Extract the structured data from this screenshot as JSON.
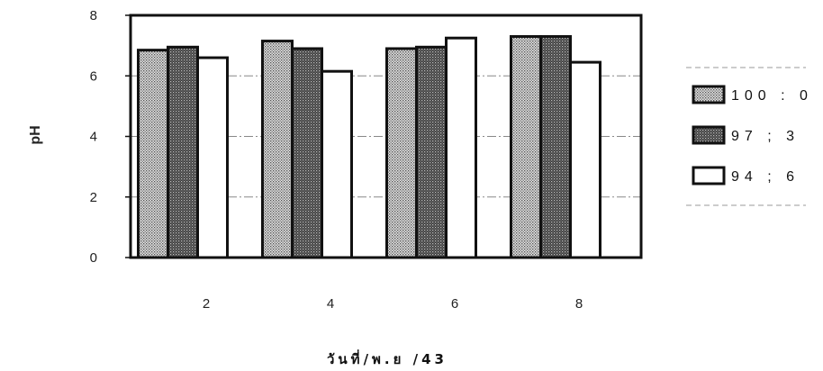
{
  "chart_data": {
    "type": "bar",
    "title": "",
    "xlabel": "วันที่/พ.ย /43",
    "ylabel": "pH",
    "categories": [
      "2",
      "4",
      "6",
      "8"
    ],
    "ylim": [
      0,
      8
    ],
    "yticks": [
      "0",
      "2",
      "4",
      "6",
      "8"
    ],
    "grid": true,
    "legend_position": "right",
    "series": [
      {
        "name": "100 : 0",
        "values": [
          6.85,
          7.15,
          6.9,
          7.3
        ],
        "pattern": "light-dots",
        "color": "#bdbdbd"
      },
      {
        "name": "97 ; 3",
        "values": [
          6.95,
          6.9,
          6.95,
          7.3
        ],
        "pattern": "dark-dots",
        "color": "#5a5a5a"
      },
      {
        "name": "94 ; 6",
        "values": [
          6.6,
          6.15,
          7.25,
          6.45
        ],
        "pattern": "none",
        "color": "#ffffff"
      }
    ]
  }
}
